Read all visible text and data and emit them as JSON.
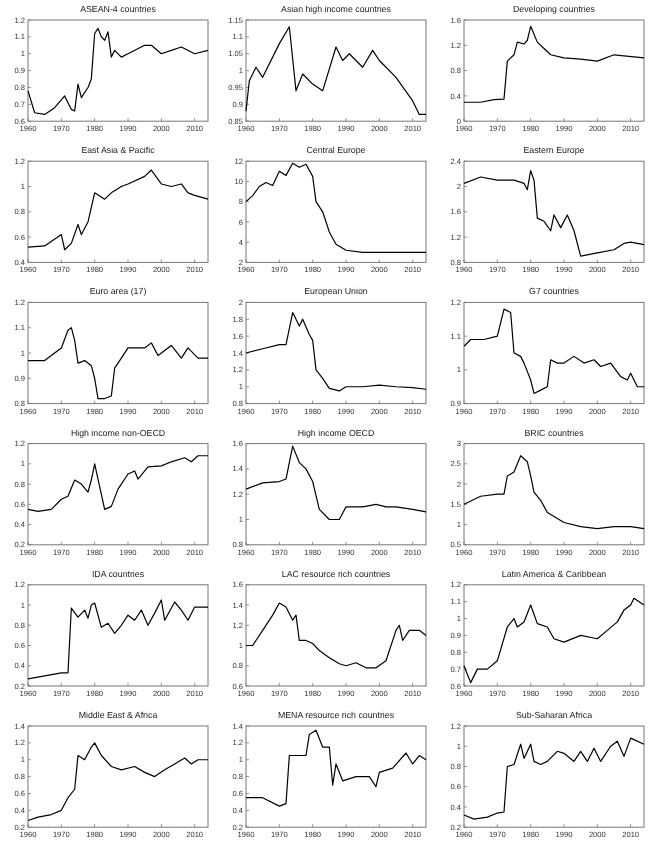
{
  "chart_data": [
    {
      "type": "line",
      "title": "ASEAN-4 countries",
      "xlim": [
        1960,
        2014
      ],
      "xticks": [
        1960,
        1970,
        1980,
        1990,
        2000,
        2010
      ],
      "ylim": [
        0.6,
        1.2
      ],
      "yticks": [
        0.6,
        0.7,
        0.8,
        0.9,
        1.0,
        1.1,
        1.2
      ],
      "series": [
        {
          "color": "#000000",
          "x": [
            1960,
            1962,
            1965,
            1968,
            1971,
            1973,
            1974,
            1975,
            1976,
            1978,
            1979,
            1980,
            1981,
            1982,
            1983,
            1984,
            1985,
            1986,
            1988,
            1990,
            1995,
            1997,
            2000,
            2003,
            2006,
            2010,
            2014
          ],
          "values": [
            0.78,
            0.65,
            0.64,
            0.68,
            0.75,
            0.67,
            0.66,
            0.82,
            0.74,
            0.8,
            0.85,
            1.12,
            1.15,
            1.1,
            1.08,
            1.13,
            0.98,
            1.02,
            0.98,
            1.0,
            1.05,
            1.05,
            1.0,
            1.02,
            1.04,
            1.0,
            1.02
          ]
        }
      ]
    },
    {
      "type": "line",
      "title": "Asian high income countries",
      "xlim": [
        1960,
        2014
      ],
      "xticks": [
        1960,
        1970,
        1980,
        1990,
        2000,
        2010
      ],
      "ylim": [
        0.85,
        1.15
      ],
      "yticks": [
        0.85,
        0.9,
        0.95,
        1.0,
        1.05,
        1.1,
        1.15
      ],
      "series": [
        {
          "color": "#000000",
          "x": [
            1960,
            1961,
            1963,
            1965,
            1970,
            1973,
            1975,
            1977,
            1980,
            1983,
            1987,
            1989,
            1991,
            1995,
            1998,
            2000,
            2005,
            2010,
            2012,
            2014
          ],
          "values": [
            0.88,
            0.97,
            1.01,
            0.98,
            1.08,
            1.13,
            0.94,
            0.99,
            0.96,
            0.94,
            1.07,
            1.03,
            1.05,
            1.01,
            1.06,
            1.03,
            0.98,
            0.91,
            0.87,
            0.87
          ]
        }
      ]
    },
    {
      "type": "line",
      "title": "Developing countries",
      "xlim": [
        1960,
        2014
      ],
      "xticks": [
        1960,
        1970,
        1980,
        1990,
        2000,
        2010
      ],
      "ylim": [
        0,
        1.6
      ],
      "yticks": [
        0,
        0.4,
        0.8,
        1.2,
        1.6
      ],
      "series": [
        {
          "color": "#000000",
          "x": [
            1960,
            1965,
            1969,
            1972,
            1973,
            1975,
            1976,
            1978,
            1979,
            1980,
            1982,
            1984,
            1986,
            1990,
            1995,
            2000,
            2005,
            2014
          ],
          "values": [
            0.3,
            0.3,
            0.34,
            0.35,
            0.95,
            1.05,
            1.25,
            1.22,
            1.28,
            1.5,
            1.25,
            1.15,
            1.05,
            1.0,
            0.98,
            0.95,
            1.05,
            1.0
          ]
        }
      ]
    },
    {
      "type": "line",
      "title": "East Asia & Pacific",
      "xlim": [
        1960,
        2014
      ],
      "xticks": [
        1960,
        1970,
        1980,
        1990,
        2000,
        2010
      ],
      "ylim": [
        0.4,
        1.2
      ],
      "yticks": [
        0.4,
        0.6,
        0.8,
        1.0,
        1.2
      ],
      "series": [
        {
          "color": "#000000",
          "x": [
            1960,
            1965,
            1970,
            1971,
            1973,
            1975,
            1976,
            1978,
            1980,
            1983,
            1985,
            1988,
            1990,
            1995,
            1997,
            2000,
            2003,
            2006,
            2008,
            2010,
            2014
          ],
          "values": [
            0.52,
            0.53,
            0.62,
            0.5,
            0.55,
            0.7,
            0.62,
            0.72,
            0.95,
            0.9,
            0.95,
            1.0,
            1.02,
            1.08,
            1.13,
            1.02,
            1.0,
            1.02,
            0.95,
            0.93,
            0.9
          ]
        }
      ]
    },
    {
      "type": "line",
      "title": "Central Europe",
      "xlim": [
        1960,
        2014
      ],
      "xticks": [
        1960,
        1970,
        1980,
        1990,
        2000,
        2010
      ],
      "ylim": [
        2,
        12
      ],
      "yticks": [
        2,
        4,
        6,
        8,
        10,
        12
      ],
      "series": [
        {
          "color": "#000000",
          "x": [
            1960,
            1962,
            1964,
            1966,
            1968,
            1970,
            1972,
            1974,
            1976,
            1978,
            1980,
            1981,
            1983,
            1985,
            1987,
            1990,
            1995,
            2000,
            2014
          ],
          "values": [
            8,
            8.6,
            9.5,
            9.9,
            9.6,
            11,
            10.6,
            11.8,
            11.4,
            11.7,
            10.5,
            8,
            7,
            5,
            3.8,
            3.2,
            3,
            3,
            3
          ]
        }
      ]
    },
    {
      "type": "line",
      "title": "Eastern Europe",
      "xlim": [
        1960,
        2014
      ],
      "xticks": [
        1960,
        1970,
        1980,
        1990,
        2000,
        2010
      ],
      "ylim": [
        0.8,
        2.4
      ],
      "yticks": [
        0.8,
        1.2,
        1.6,
        2.0,
        2.4
      ],
      "series": [
        {
          "color": "#000000",
          "x": [
            1960,
            1965,
            1970,
            1975,
            1978,
            1979,
            1980,
            1981,
            1982,
            1984,
            1986,
            1987,
            1989,
            1991,
            1993,
            1995,
            2000,
            2005,
            2008,
            2010,
            2014
          ],
          "values": [
            2.05,
            2.15,
            2.1,
            2.1,
            2.05,
            1.95,
            2.25,
            2.1,
            1.5,
            1.45,
            1.3,
            1.55,
            1.35,
            1.55,
            1.3,
            0.9,
            0.95,
            1.0,
            1.1,
            1.12,
            1.08
          ]
        }
      ]
    },
    {
      "type": "line",
      "title": "Euro area (17)",
      "xlim": [
        1960,
        2014
      ],
      "xticks": [
        1960,
        1970,
        1980,
        1990,
        2000,
        2010
      ],
      "ylim": [
        0.8,
        1.2
      ],
      "yticks": [
        0.8,
        0.9,
        1.0,
        1.1,
        1.2
      ],
      "series": [
        {
          "color": "#000000",
          "x": [
            1960,
            1965,
            1970,
            1972,
            1973,
            1974,
            1975,
            1977,
            1979,
            1980,
            1981,
            1983,
            1985,
            1986,
            1988,
            1990,
            1995,
            1997,
            1999,
            2003,
            2006,
            2008,
            2011,
            2014
          ],
          "values": [
            0.97,
            0.97,
            1.02,
            1.09,
            1.1,
            1.05,
            0.96,
            0.97,
            0.95,
            0.9,
            0.82,
            0.82,
            0.83,
            0.94,
            0.98,
            1.02,
            1.02,
            1.04,
            0.99,
            1.03,
            0.98,
            1.02,
            0.98,
            0.98
          ]
        }
      ]
    },
    {
      "type": "line",
      "title": "European Union",
      "xlim": [
        1960,
        2014
      ],
      "xticks": [
        1960,
        1970,
        1980,
        1990,
        2000,
        2010
      ],
      "ylim": [
        0.8,
        2.0
      ],
      "yticks": [
        0.8,
        1.0,
        1.2,
        1.4,
        1.6,
        1.8,
        2.0
      ],
      "series": [
        {
          "color": "#000000",
          "x": [
            1960,
            1965,
            1970,
            1972,
            1974,
            1976,
            1977,
            1979,
            1980,
            1981,
            1983,
            1985,
            1988,
            1990,
            1995,
            2000,
            2005,
            2010,
            2014
          ],
          "values": [
            1.4,
            1.45,
            1.5,
            1.5,
            1.88,
            1.72,
            1.8,
            1.62,
            1.55,
            1.2,
            1.1,
            0.98,
            0.95,
            1.0,
            1.0,
            1.02,
            1.0,
            0.99,
            0.97
          ]
        }
      ]
    },
    {
      "type": "line",
      "title": "G7 countries",
      "xlim": [
        1960,
        2014
      ],
      "xticks": [
        1960,
        1970,
        1980,
        1990,
        2000,
        2010
      ],
      "ylim": [
        0.9,
        1.2
      ],
      "yticks": [
        0.9,
        1.0,
        1.1,
        1.2
      ],
      "series": [
        {
          "color": "#000000",
          "x": [
            1960,
            1962,
            1966,
            1970,
            1972,
            1974,
            1975,
            1977,
            1978,
            1980,
            1981,
            1983,
            1985,
            1986,
            1988,
            1990,
            1993,
            1996,
            1999,
            2001,
            2004,
            2007,
            2009,
            2010,
            2012,
            2014
          ],
          "values": [
            1.07,
            1.09,
            1.09,
            1.1,
            1.18,
            1.17,
            1.05,
            1.04,
            1.02,
            0.97,
            0.93,
            0.94,
            0.95,
            1.03,
            1.02,
            1.02,
            1.04,
            1.02,
            1.03,
            1.01,
            1.02,
            0.98,
            0.97,
            0.99,
            0.95,
            0.95
          ]
        }
      ]
    },
    {
      "type": "line",
      "title": "High income non-OECD",
      "xlim": [
        1960,
        2014
      ],
      "xticks": [
        1960,
        1970,
        1980,
        1990,
        2000,
        2010
      ],
      "ylim": [
        0.2,
        1.2
      ],
      "yticks": [
        0.2,
        0.4,
        0.6,
        0.8,
        1.0,
        1.2
      ],
      "series": [
        {
          "color": "#000000",
          "x": [
            1960,
            1963,
            1967,
            1970,
            1972,
            1974,
            1976,
            1978,
            1979,
            1980,
            1981,
            1983,
            1985,
            1987,
            1990,
            1992,
            1993,
            1996,
            2000,
            2003,
            2007,
            2009,
            2011,
            2014
          ],
          "values": [
            0.55,
            0.53,
            0.55,
            0.65,
            0.68,
            0.84,
            0.8,
            0.72,
            0.84,
            1.0,
            0.85,
            0.55,
            0.58,
            0.75,
            0.9,
            0.93,
            0.85,
            0.97,
            0.98,
            1.02,
            1.06,
            1.02,
            1.08,
            1.08
          ]
        }
      ]
    },
    {
      "type": "line",
      "title": "High income OECD",
      "xlim": [
        1960,
        2014
      ],
      "xticks": [
        1960,
        1970,
        1980,
        1990,
        2000,
        2010
      ],
      "ylim": [
        0.8,
        1.6
      ],
      "yticks": [
        0.8,
        1.0,
        1.2,
        1.4,
        1.6
      ],
      "series": [
        {
          "color": "#000000",
          "x": [
            1960,
            1965,
            1970,
            1972,
            1974,
            1976,
            1978,
            1980,
            1982,
            1985,
            1988,
            1990,
            1995,
            1999,
            2002,
            2005,
            2010,
            2014
          ],
          "values": [
            1.24,
            1.29,
            1.3,
            1.32,
            1.58,
            1.45,
            1.4,
            1.3,
            1.08,
            1.0,
            1.0,
            1.1,
            1.1,
            1.12,
            1.1,
            1.1,
            1.08,
            1.06
          ]
        }
      ]
    },
    {
      "type": "line",
      "title": "BRIC countries",
      "xlim": [
        1960,
        2014
      ],
      "xticks": [
        1960,
        1970,
        1980,
        1990,
        2000,
        2010
      ],
      "ylim": [
        0.5,
        3.0
      ],
      "yticks": [
        0.5,
        1.0,
        1.5,
        2.0,
        2.5,
        3.0
      ],
      "series": [
        {
          "color": "#000000",
          "x": [
            1960,
            1965,
            1970,
            1972,
            1973,
            1975,
            1977,
            1979,
            1980,
            1981,
            1983,
            1985,
            1990,
            1995,
            2000,
            2005,
            2010,
            2014
          ],
          "values": [
            1.5,
            1.7,
            1.75,
            1.75,
            2.2,
            2.3,
            2.7,
            2.55,
            2.2,
            1.8,
            1.6,
            1.3,
            1.05,
            0.95,
            0.9,
            0.95,
            0.95,
            0.9
          ]
        }
      ]
    },
    {
      "type": "line",
      "title": "IDA countries",
      "xlim": [
        1960,
        2014
      ],
      "xticks": [
        1960,
        1970,
        1980,
        1990,
        2000,
        2010
      ],
      "ylim": [
        0.2,
        1.2
      ],
      "yticks": [
        0.2,
        0.4,
        0.6,
        0.8,
        1.0,
        1.2
      ],
      "series": [
        {
          "color": "#000000",
          "x": [
            1960,
            1965,
            1970,
            1972,
            1973,
            1975,
            1977,
            1978,
            1979,
            1980,
            1982,
            1984,
            1986,
            1988,
            1990,
            1992,
            1994,
            1996,
            1998,
            2000,
            2001,
            2004,
            2006,
            2008,
            2010,
            2014
          ],
          "values": [
            0.27,
            0.3,
            0.33,
            0.33,
            0.97,
            0.88,
            0.95,
            0.87,
            1.0,
            1.02,
            0.78,
            0.82,
            0.72,
            0.8,
            0.9,
            0.85,
            0.95,
            0.8,
            0.92,
            1.05,
            0.85,
            1.03,
            0.95,
            0.85,
            0.98,
            0.98
          ]
        }
      ]
    },
    {
      "type": "line",
      "title": "LAC resource rich countries",
      "xlim": [
        1960,
        2014
      ],
      "xticks": [
        1960,
        1970,
        1980,
        1990,
        2000,
        2010
      ],
      "ylim": [
        0.6,
        1.6
      ],
      "yticks": [
        0.6,
        0.8,
        1.0,
        1.2,
        1.4,
        1.6
      ],
      "series": [
        {
          "color": "#000000",
          "x": [
            1960,
            1962,
            1965,
            1968,
            1970,
            1972,
            1974,
            1975,
            1976,
            1978,
            1980,
            1982,
            1985,
            1988,
            1990,
            1993,
            1996,
            1999,
            2002,
            2005,
            2006,
            2007,
            2009,
            2012,
            2014
          ],
          "values": [
            1.0,
            1.0,
            1.15,
            1.3,
            1.42,
            1.38,
            1.25,
            1.3,
            1.05,
            1.05,
            1.02,
            0.95,
            0.88,
            0.82,
            0.8,
            0.83,
            0.78,
            0.78,
            0.85,
            1.15,
            1.2,
            1.05,
            1.15,
            1.15,
            1.1
          ]
        }
      ]
    },
    {
      "type": "line",
      "title": "Latin America & Caribbean",
      "xlim": [
        1960,
        2014
      ],
      "xticks": [
        1960,
        1970,
        1980,
        1990,
        2000,
        2010
      ],
      "ylim": [
        0.6,
        1.2
      ],
      "yticks": [
        0.6,
        0.7,
        0.8,
        0.9,
        1.0,
        1.1,
        1.2
      ],
      "series": [
        {
          "color": "#000000",
          "x": [
            1960,
            1962,
            1964,
            1967,
            1970,
            1973,
            1975,
            1976,
            1978,
            1980,
            1982,
            1985,
            1987,
            1990,
            1995,
            2000,
            2003,
            2006,
            2008,
            2010,
            2011,
            2014
          ],
          "values": [
            0.72,
            0.62,
            0.7,
            0.7,
            0.75,
            0.95,
            1.0,
            0.95,
            0.98,
            1.08,
            0.97,
            0.95,
            0.88,
            0.86,
            0.9,
            0.88,
            0.93,
            0.98,
            1.05,
            1.08,
            1.12,
            1.08
          ]
        }
      ]
    },
    {
      "type": "line",
      "title": "Middle East & Africa",
      "xlim": [
        1960,
        2014
      ],
      "xticks": [
        1960,
        1970,
        1980,
        1990,
        2000,
        2010
      ],
      "ylim": [
        0.2,
        1.4
      ],
      "yticks": [
        0.2,
        0.4,
        0.6,
        0.8,
        1.0,
        1.2,
        1.4
      ],
      "series": [
        {
          "color": "#000000",
          "x": [
            1960,
            1963,
            1967,
            1970,
            1972,
            1974,
            1975,
            1977,
            1979,
            1980,
            1982,
            1985,
            1988,
            1992,
            1995,
            1998,
            2001,
            2004,
            2007,
            2009,
            2011,
            2014
          ],
          "values": [
            0.28,
            0.32,
            0.35,
            0.4,
            0.55,
            0.65,
            1.05,
            1.0,
            1.15,
            1.2,
            1.05,
            0.92,
            0.88,
            0.92,
            0.85,
            0.8,
            0.88,
            0.95,
            1.02,
            0.95,
            1.0,
            1.0
          ]
        }
      ]
    },
    {
      "type": "line",
      "title": "MENA resource rich countries",
      "xlim": [
        1960,
        2014
      ],
      "xticks": [
        1960,
        1970,
        1980,
        1990,
        2000,
        2010
      ],
      "ylim": [
        0.2,
        1.4
      ],
      "yticks": [
        0.2,
        0.4,
        0.6,
        0.8,
        1.0,
        1.2,
        1.4
      ],
      "series": [
        {
          "color": "#000000",
          "x": [
            1960,
            1965,
            1970,
            1972,
            1973,
            1975,
            1978,
            1979,
            1981,
            1983,
            1985,
            1986,
            1987,
            1989,
            1993,
            1997,
            1999,
            2000,
            2004,
            2008,
            2010,
            2012,
            2014
          ],
          "values": [
            0.55,
            0.55,
            0.45,
            0.48,
            1.05,
            1.05,
            1.05,
            1.3,
            1.35,
            1.15,
            1.15,
            0.7,
            0.95,
            0.75,
            0.8,
            0.8,
            0.68,
            0.85,
            0.9,
            1.08,
            0.95,
            1.05,
            1.0
          ]
        }
      ]
    },
    {
      "type": "line",
      "title": "Sub-Saharan Africa",
      "xlim": [
        1960,
        2014
      ],
      "xticks": [
        1960,
        1970,
        1980,
        1990,
        2000,
        2010
      ],
      "ylim": [
        0.2,
        1.2
      ],
      "yticks": [
        0.2,
        0.4,
        0.6,
        0.8,
        1.0,
        1.2
      ],
      "series": [
        {
          "color": "#000000",
          "x": [
            1960,
            1963,
            1967,
            1970,
            1972,
            1973,
            1975,
            1977,
            1978,
            1980,
            1981,
            1983,
            1985,
            1988,
            1990,
            1993,
            1995,
            1997,
            1999,
            2001,
            2004,
            2006,
            2008,
            2010,
            2014
          ],
          "values": [
            0.32,
            0.28,
            0.3,
            0.34,
            0.35,
            0.8,
            0.82,
            1.02,
            0.88,
            1.02,
            0.85,
            0.82,
            0.85,
            0.95,
            0.93,
            0.85,
            0.95,
            0.85,
            0.98,
            0.85,
            1.0,
            1.05,
            0.9,
            1.08,
            1.02
          ]
        }
      ]
    }
  ]
}
